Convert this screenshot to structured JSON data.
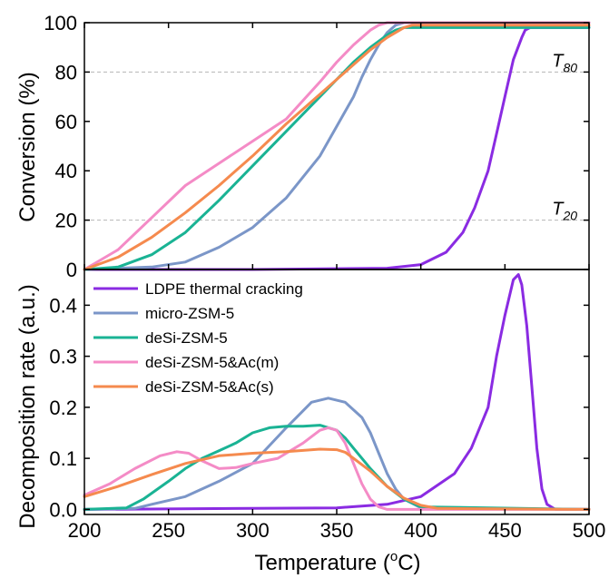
{
  "chart_data": [
    {
      "type": "line",
      "panel": "top",
      "ylabel": "Conversion (%)",
      "xlim": [
        200,
        500
      ],
      "ylim": [
        0,
        100
      ],
      "yticks": [
        0,
        20,
        40,
        60,
        80,
        100
      ],
      "grid": "dashed horizontal lines at 20 and 80",
      "annotations": [
        {
          "text": "T",
          "sub": "80",
          "x": 493,
          "y": 80
        },
        {
          "text": "T",
          "sub": "20",
          "x": 493,
          "y": 20
        }
      ],
      "series": [
        {
          "name": "LDPE thermal cracking",
          "color": "#8A2BE2",
          "x": [
            200,
            300,
            380,
            400,
            415,
            425,
            432,
            440,
            445,
            450,
            455,
            460,
            462,
            465,
            470,
            500
          ],
          "y": [
            0,
            0,
            0.5,
            2,
            7,
            15,
            25,
            40,
            55,
            70,
            85,
            94,
            97,
            98,
            98,
            98
          ]
        },
        {
          "name": "micro-ZSM-5",
          "color": "#7B96C8",
          "x": [
            200,
            240,
            260,
            280,
            300,
            320,
            340,
            350,
            360,
            365,
            370,
            375,
            380,
            385,
            390,
            395,
            500
          ],
          "y": [
            0,
            1,
            3,
            9,
            17,
            29,
            46,
            58,
            70,
            78,
            85,
            91,
            96,
            99,
            100,
            100,
            100
          ]
        },
        {
          "name": "deSi-ZSM-5",
          "color": "#1AB394",
          "x": [
            200,
            220,
            240,
            260,
            280,
            300,
            320,
            340,
            360,
            370,
            380,
            385,
            390,
            500
          ],
          "y": [
            0,
            1,
            6,
            15,
            28,
            42,
            56,
            70,
            84,
            90,
            95,
            97,
            98,
            98
          ]
        },
        {
          "name": "deSi-ZSM-5&Ac(m)",
          "color": "#F48BC6",
          "x": [
            200,
            220,
            240,
            260,
            280,
            300,
            320,
            340,
            350,
            360,
            370,
            375,
            380,
            500
          ],
          "y": [
            0,
            8,
            21,
            34,
            43,
            52,
            61,
            76,
            84,
            91,
            97,
            99,
            100,
            100
          ]
        },
        {
          "name": "deSi-ZSM-5&Ac(s)",
          "color": "#F58A4E",
          "x": [
            200,
            220,
            240,
            260,
            280,
            300,
            320,
            340,
            360,
            370,
            380,
            390,
            395,
            500
          ],
          "y": [
            0,
            5,
            13,
            23,
            34,
            46,
            59,
            71,
            83,
            89,
            94,
            98,
            99,
            99
          ]
        }
      ]
    },
    {
      "type": "line",
      "panel": "bottom",
      "xlabel": "Temperature (°C)",
      "xlabel_main": "Temperature (",
      "xlabel_sup": "o",
      "xlabel_end": "C)",
      "ylabel": "Decomposition rate (a.u.)",
      "xlim": [
        200,
        500
      ],
      "ylim": [
        -0.01,
        0.47
      ],
      "xticks": [
        200,
        250,
        300,
        350,
        400,
        450,
        500
      ],
      "yticks": [
        "0.0",
        "0.1",
        "0.2",
        "0.3",
        "0.4"
      ],
      "legend": "top-left",
      "series": [
        {
          "name": "LDPE thermal cracking",
          "color": "#8A2BE2",
          "x": [
            200,
            350,
            380,
            400,
            420,
            430,
            440,
            445,
            450,
            455,
            458,
            460,
            463,
            466,
            469,
            472,
            475,
            480,
            500
          ],
          "y": [
            0,
            0.003,
            0.01,
            0.025,
            0.07,
            0.12,
            0.2,
            0.3,
            0.38,
            0.45,
            0.46,
            0.44,
            0.36,
            0.24,
            0.12,
            0.04,
            0.01,
            0,
            0
          ]
        },
        {
          "name": "micro-ZSM-5",
          "color": "#7B96C8",
          "x": [
            200,
            230,
            240,
            260,
            280,
            300,
            320,
            335,
            345,
            355,
            365,
            370,
            375,
            380,
            385,
            390,
            400,
            500
          ],
          "y": [
            0,
            0.002,
            0.01,
            0.025,
            0.055,
            0.09,
            0.16,
            0.21,
            0.218,
            0.21,
            0.18,
            0.15,
            0.11,
            0.07,
            0.04,
            0.02,
            0.003,
            0
          ]
        },
        {
          "name": "deSi-ZSM-5",
          "color": "#1AB394",
          "x": [
            200,
            225,
            235,
            250,
            260,
            270,
            280,
            290,
            300,
            310,
            320,
            330,
            340,
            350,
            355,
            360,
            370,
            380,
            390,
            400,
            500
          ],
          "y": [
            0,
            0.003,
            0.02,
            0.055,
            0.08,
            0.1,
            0.115,
            0.13,
            0.15,
            0.16,
            0.163,
            0.163,
            0.165,
            0.155,
            0.14,
            0.12,
            0.08,
            0.045,
            0.02,
            0.005,
            0
          ]
        },
        {
          "name": "deSi-ZSM-5&Ac(m)",
          "color": "#F48BC6",
          "x": [
            200,
            215,
            230,
            245,
            255,
            262,
            270,
            280,
            290,
            300,
            315,
            330,
            340,
            345,
            350,
            355,
            360,
            365,
            370,
            375,
            380,
            500
          ],
          "y": [
            0.028,
            0.05,
            0.08,
            0.105,
            0.113,
            0.11,
            0.095,
            0.08,
            0.082,
            0.09,
            0.1,
            0.13,
            0.155,
            0.16,
            0.155,
            0.13,
            0.09,
            0.05,
            0.02,
            0.005,
            0,
            0
          ]
        },
        {
          "name": "deSi-ZSM-5&Ac(s)",
          "color": "#F58A4E",
          "x": [
            200,
            220,
            240,
            260,
            280,
            300,
            320,
            340,
            350,
            355,
            360,
            370,
            380,
            390,
            400,
            410,
            500
          ],
          "y": [
            0.025,
            0.045,
            0.068,
            0.09,
            0.105,
            0.11,
            0.113,
            0.118,
            0.117,
            0.112,
            0.1,
            0.075,
            0.045,
            0.022,
            0.008,
            0.002,
            0
          ]
        }
      ]
    }
  ]
}
